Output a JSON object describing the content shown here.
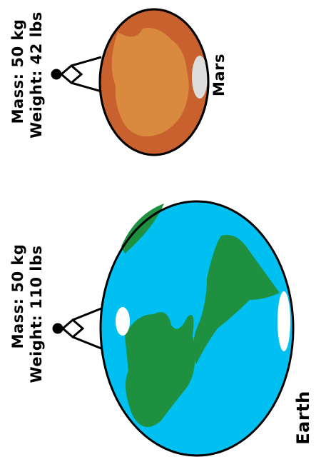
{
  "planets": [
    {
      "name": "Mars",
      "mass": "Mass: 50 kg",
      "weight": "Weight: 42 lbs"
    },
    {
      "name": "Earth",
      "mass": "Mass: 50 kg",
      "weight": "Weight: 110 lbs"
    }
  ]
}
